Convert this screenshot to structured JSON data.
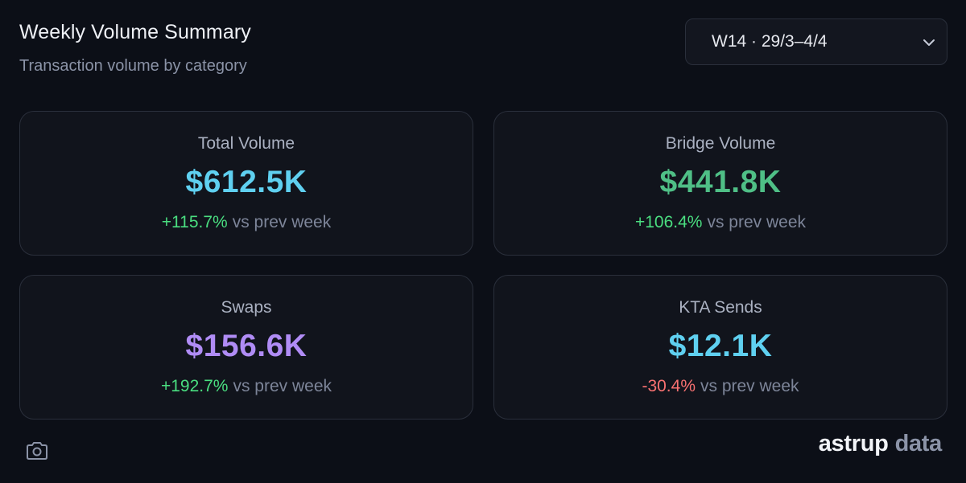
{
  "header": {
    "title": "Weekly Volume Summary",
    "subtitle": "Transaction volume by category"
  },
  "week_selector": {
    "selected": "W14 · 29/3–4/4"
  },
  "cards": {
    "total": {
      "label": "Total Volume",
      "value": "$612.5K",
      "delta": "+115.7%",
      "delta_suffix": "vs prev week",
      "value_color": "#5fd0f0"
    },
    "bridge": {
      "label": "Bridge Volume",
      "value": "$441.8K",
      "delta": "+106.4%",
      "delta_suffix": "vs prev week",
      "value_color": "#4fbf86"
    },
    "swaps": {
      "label": "Swaps",
      "value": "$156.6K",
      "delta": "+192.7%",
      "delta_suffix": "vs prev week",
      "value_color": "#b08cf5"
    },
    "kta": {
      "label": "KTA Sends",
      "value": "$12.1K",
      "delta": "-30.4%",
      "delta_suffix": "vs prev week",
      "value_color": "#5fd0f0"
    }
  },
  "footer": {
    "camera_icon": "camera-icon",
    "brand_part1": "astrup",
    "brand_part2": "data"
  },
  "colors": {
    "positive": "#4ade80",
    "negative": "#f87171",
    "background": "#0c0f17"
  }
}
